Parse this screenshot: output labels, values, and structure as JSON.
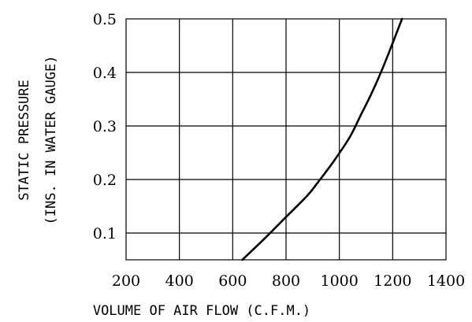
{
  "chart_data": {
    "type": "line",
    "title": "",
    "xlabel": "VOLUME OF AIR FLOW (C.F.M.)",
    "ylabel_line1": "STATIC PRESSURE",
    "ylabel_line2": "(INS. IN WATER GAUGE)",
    "xlim": [
      200,
      1400
    ],
    "ylim": [
      0.05,
      0.5
    ],
    "x_ticks": [
      "200",
      "400",
      "600",
      "800",
      "1000",
      "1200",
      "1400"
    ],
    "y_ticks": [
      "0.1",
      "0.2",
      "0.3",
      "0.4",
      "0.5"
    ],
    "grid": true,
    "series": [
      {
        "x": [
          636,
          720,
          800,
          880,
          920,
          980,
          1040,
          1080,
          1120,
          1160,
          1200,
          1235
        ],
        "y": [
          0.05,
          0.09,
          0.13,
          0.17,
          0.195,
          0.235,
          0.28,
          0.32,
          0.36,
          0.405,
          0.455,
          0.5
        ]
      }
    ],
    "line_color": "#000000"
  }
}
